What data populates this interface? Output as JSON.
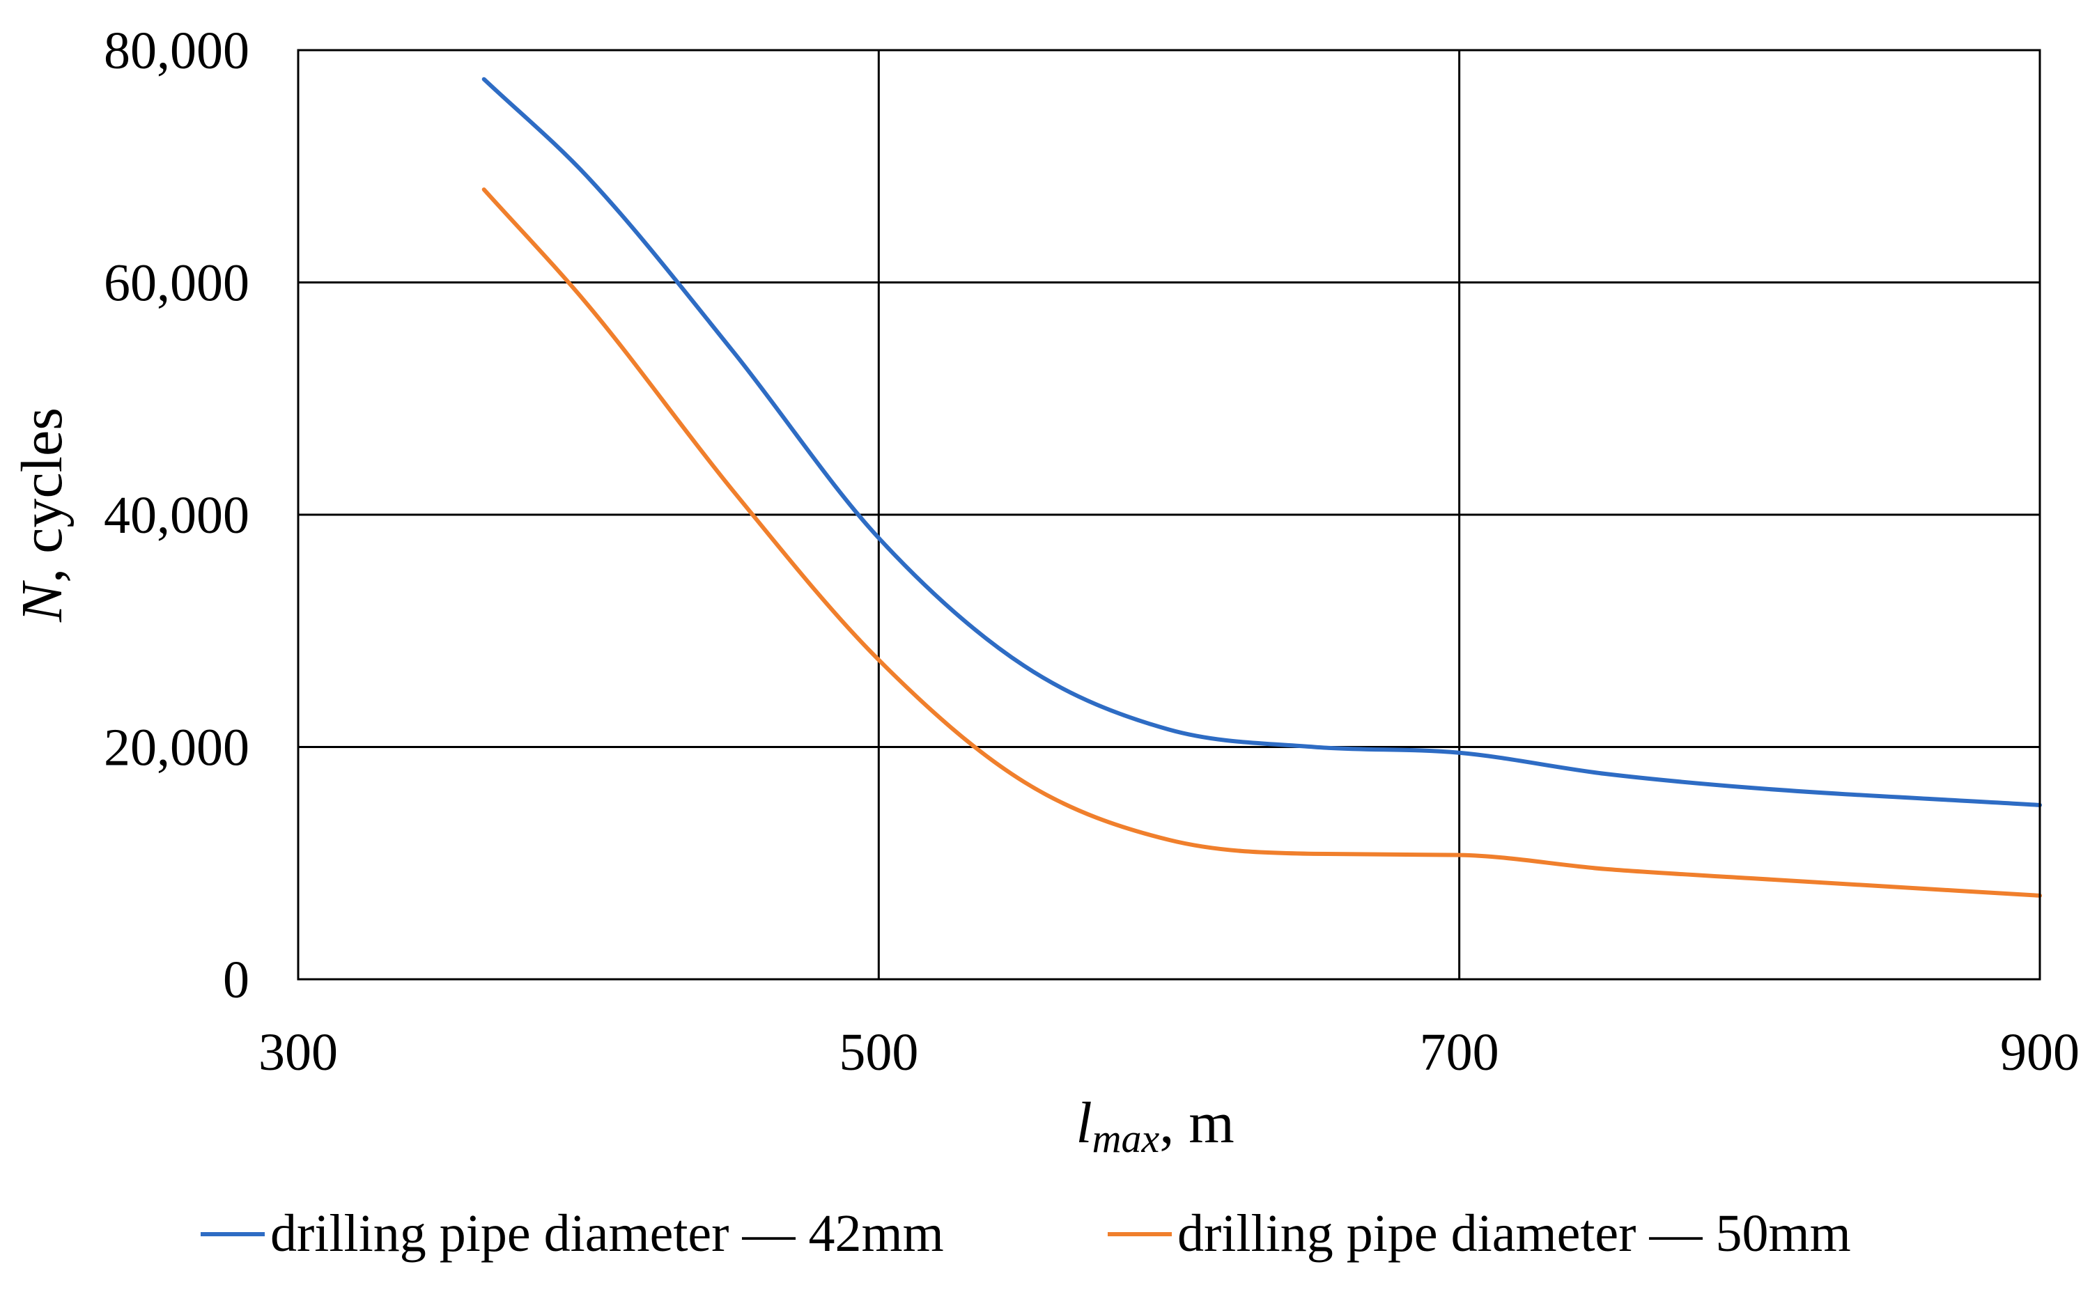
{
  "chart_data": {
    "type": "line",
    "title": "",
    "xlabel": {
      "var": "l",
      "sub": "max",
      "rest": ", m"
    },
    "ylabel": {
      "var": "N",
      "rest": ", cycles"
    },
    "xlim": [
      300,
      900
    ],
    "ylim": [
      0,
      80000
    ],
    "x_ticks": [
      300,
      500,
      700,
      900
    ],
    "y_ticks": [
      0,
      20000,
      40000,
      60000,
      80000
    ],
    "x_tick_labels": [
      "300",
      "500",
      "700",
      "900"
    ],
    "y_tick_labels": [
      "0",
      "20,000",
      "40,000",
      "60,000",
      "80,000"
    ],
    "grid": true,
    "legend_position": "bottom",
    "series": [
      {
        "name": "drilling pipe diameter — 42mm",
        "color": "#2E6CC4",
        "x": [
          364,
          400,
          450,
          500,
          550,
          600,
          650,
          700,
          750,
          800,
          900
        ],
        "y": [
          77500,
          69000,
          54000,
          38000,
          27000,
          21500,
          20000,
          19500,
          17700,
          16500,
          15000
        ]
      },
      {
        "name": "drilling pipe diameter — 50mm",
        "color": "#F07F2C",
        "x": [
          364,
          400,
          450,
          500,
          550,
          600,
          650,
          700,
          750,
          800,
          900
        ],
        "y": [
          68000,
          58000,
          42000,
          27500,
          17000,
          12000,
          10800,
          10700,
          9500,
          8700,
          7200
        ]
      }
    ]
  }
}
